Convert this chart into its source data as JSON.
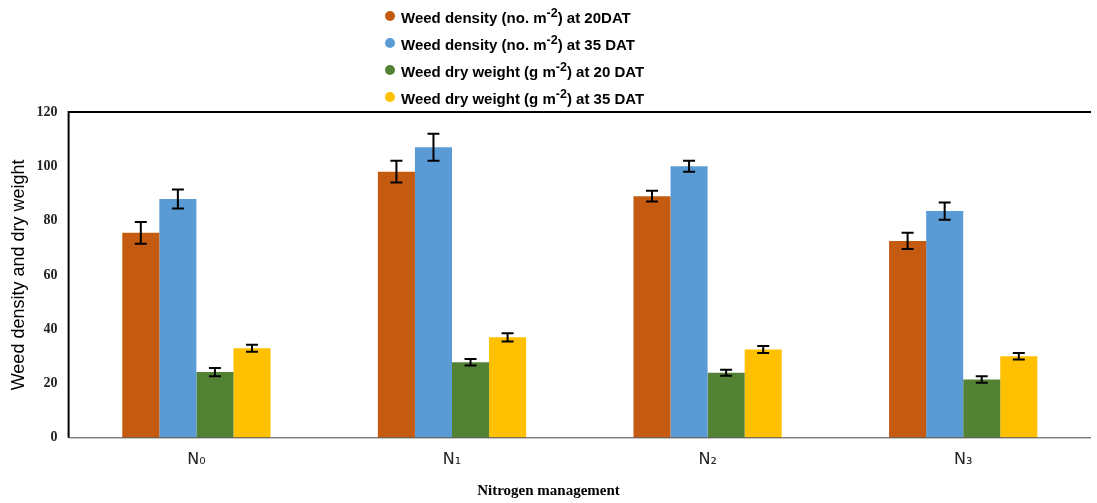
{
  "chart_data": {
    "type": "bar",
    "xlabel": "Nitrogen management",
    "ylabel": "Weed density and dry weight",
    "categories": [
      "N₀",
      "N₁",
      "N₂",
      "N₃"
    ],
    "series": [
      {
        "name": "Weed density (no. m$^{-2}$) at 20DAT",
        "color": "#c55a11",
        "values": [
          75.5,
          98,
          89,
          72.5
        ],
        "errors": [
          4,
          4,
          2,
          3
        ]
      },
      {
        "name": "Weed density (no. m$^{-2}$) at 35 DAT",
        "color": "#5b9bd5",
        "values": [
          88,
          107,
          100,
          83.5
        ],
        "errors": [
          3.5,
          5,
          2,
          3.2
        ]
      },
      {
        "name": "Weed dry weight (g m$^{-2}$) at 20 DAT",
        "color": "#548235",
        "values": [
          24.2,
          27.8,
          24,
          21.5
        ],
        "errors": [
          1.5,
          1.2,
          1.1,
          1.2
        ]
      },
      {
        "name": "Weed dry weight (g m$^{-2}$) at 35 DAT",
        "color": "#ffc000",
        "values": [
          33,
          37,
          32.5,
          30
        ],
        "errors": [
          1.3,
          1.5,
          1.3,
          1.2
        ]
      }
    ],
    "ylim": [
      0,
      120
    ],
    "yticks": [
      0,
      20,
      40,
      60,
      80,
      100,
      120
    ],
    "grid": false,
    "legend": "top"
  }
}
